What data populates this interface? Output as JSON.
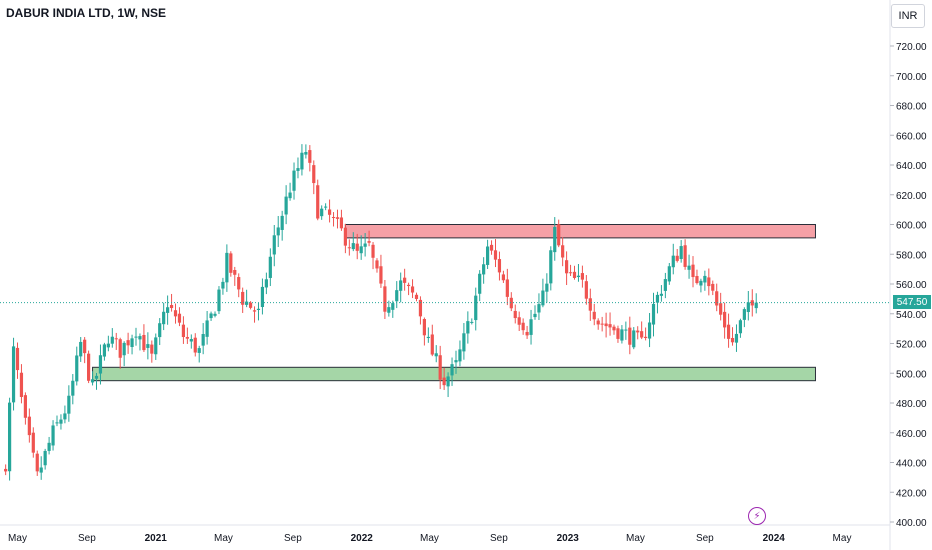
{
  "header": {
    "title": "DABUR INDIA LTD, 1W, NSE",
    "currency_label": "INR"
  },
  "last_price_label": "547.50",
  "colors": {
    "up": "#26a69a",
    "down": "#ef5350",
    "resistance_fill": "#f5a0a6",
    "support_fill": "#a5d6a7",
    "zone_border": "#2a2e39",
    "last_price_line": "#26a69a",
    "bolt": "#9c27b0"
  },
  "icons": {
    "event_icon": "lightning-bolt-icon"
  },
  "chart_data": {
    "type": "candlestick",
    "title": "DABUR INDIA LTD, 1W, NSE",
    "ylim": [
      400,
      730
    ],
    "y_ticks": [
      "400.00",
      "420.00",
      "440.00",
      "460.00",
      "480.00",
      "500.00",
      "520.00",
      "540.00",
      "560.00",
      "580.00",
      "600.00",
      "620.00",
      "640.00",
      "660.00",
      "680.00",
      "700.00",
      "720.00"
    ],
    "x_ticks": [
      {
        "label": "May",
        "date": "2020-05-01"
      },
      {
        "label": "Sep",
        "date": "2020-09-01"
      },
      {
        "label": "2021",
        "date": "2021-01-01"
      },
      {
        "label": "May",
        "date": "2021-05-01"
      },
      {
        "label": "Sep",
        "date": "2021-09-01"
      },
      {
        "label": "2022",
        "date": "2022-01-01"
      },
      {
        "label": "May",
        "date": "2022-05-01"
      },
      {
        "label": "Sep",
        "date": "2022-09-01"
      },
      {
        "label": "2023",
        "date": "2023-01-01"
      },
      {
        "label": "May",
        "date": "2023-05-01"
      },
      {
        "label": "Sep",
        "date": "2023-09-01"
      },
      {
        "label": "2024",
        "date": "2024-01-01"
      },
      {
        "label": "May",
        "date": "2024-05-01"
      }
    ],
    "close_path": [
      [
        "2020-04-10",
        440
      ],
      [
        "2020-04-24",
        515
      ],
      [
        "2020-05-15",
        465
      ],
      [
        "2020-06-05",
        430
      ],
      [
        "2020-07-03",
        460
      ],
      [
        "2020-07-31",
        480
      ],
      [
        "2020-08-21",
        520
      ],
      [
        "2020-09-11",
        490
      ],
      [
        "2020-10-09",
        525
      ],
      [
        "2020-10-30",
        515
      ],
      [
        "2020-11-27",
        530
      ],
      [
        "2020-12-25",
        510
      ],
      [
        "2021-01-22",
        548
      ],
      [
        "2021-02-19",
        525
      ],
      [
        "2021-03-19",
        515
      ],
      [
        "2021-04-16",
        545
      ],
      [
        "2021-05-07",
        575
      ],
      [
        "2021-06-04",
        550
      ],
      [
        "2021-07-02",
        540
      ],
      [
        "2021-07-30",
        590
      ],
      [
        "2021-08-27",
        625
      ],
      [
        "2021-09-24",
        650
      ],
      [
        "2021-10-15",
        610
      ],
      [
        "2021-11-05",
        605
      ],
      [
        "2021-11-26",
        595
      ],
      [
        "2021-12-24",
        580
      ],
      [
        "2022-01-14",
        585
      ],
      [
        "2022-02-11",
        545
      ],
      [
        "2022-03-11",
        560
      ],
      [
        "2022-04-08",
        550
      ],
      [
        "2022-04-29",
        520
      ],
      [
        "2022-05-27",
        495
      ],
      [
        "2022-06-17",
        505
      ],
      [
        "2022-07-15",
        540
      ],
      [
        "2022-08-12",
        585
      ],
      [
        "2022-09-02",
        570
      ],
      [
        "2022-09-23",
        545
      ],
      [
        "2022-10-21",
        530
      ],
      [
        "2022-11-18",
        550
      ],
      [
        "2022-12-09",
        595
      ],
      [
        "2022-12-30",
        565
      ],
      [
        "2023-01-27",
        560
      ],
      [
        "2023-02-24",
        535
      ],
      [
        "2023-03-24",
        530
      ],
      [
        "2023-04-21",
        525
      ],
      [
        "2023-05-12",
        520
      ],
      [
        "2023-06-02",
        545
      ],
      [
        "2023-06-30",
        570
      ],
      [
        "2023-07-21",
        585
      ],
      [
        "2023-08-11",
        560
      ],
      [
        "2023-09-01",
        570
      ],
      [
        "2023-09-22",
        545
      ],
      [
        "2023-10-20",
        520
      ],
      [
        "2023-11-10",
        540
      ],
      [
        "2023-12-01",
        547.5
      ]
    ],
    "last_price": 547.5,
    "zones": [
      {
        "type": "resistance",
        "start": "2021-12-03",
        "end": "2024-03-15",
        "low": 591,
        "high": 600
      },
      {
        "type": "support",
        "start": "2020-09-11",
        "end": "2024-03-15",
        "low": 495,
        "high": 504
      }
    ]
  }
}
